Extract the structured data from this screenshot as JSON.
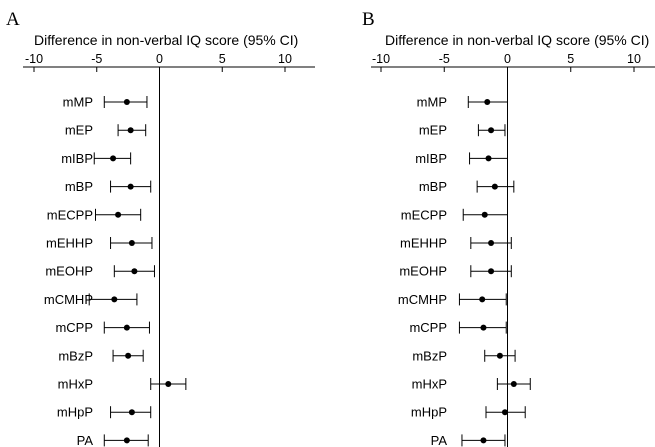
{
  "chart_data": [
    {
      "type": "scatter",
      "panel": "A",
      "title": "Difference in non-verbal IQ score (95% CI)",
      "xlim": [
        -10,
        10
      ],
      "xticks": [
        -10,
        -5,
        0,
        5,
        10
      ],
      "tick_labels": [
        "-10",
        "-5",
        "0",
        "5",
        "10"
      ],
      "categories": [
        "mMP",
        "mEP",
        "mIBP",
        "mBP",
        "mECPP",
        "mEHHP",
        "mEOHP",
        "mCMHP",
        "mCPP",
        "mBzP",
        "mHxP",
        "mHpP",
        "PA"
      ],
      "series": [
        {
          "values": [
            -2.6,
            -2.3,
            -3.7,
            -2.3,
            -3.3,
            -2.2,
            -2.0,
            -3.6,
            -2.6,
            -2.5,
            0.7,
            -2.2,
            -2.6
          ],
          "lower": [
            -4.4,
            -3.3,
            -5.2,
            -3.9,
            -5.1,
            -3.9,
            -3.6,
            -5.6,
            -4.4,
            -3.7,
            -0.7,
            -3.9,
            -4.4
          ],
          "upper": [
            -1.0,
            -1.1,
            -2.3,
            -0.7,
            -1.5,
            -0.6,
            -0.4,
            -1.8,
            -0.8,
            -1.3,
            2.1,
            -0.7,
            -0.9
          ]
        }
      ]
    },
    {
      "type": "scatter",
      "panel": "B",
      "title": "Difference in non-verbal IQ score (95% CI)",
      "xlim": [
        -10,
        10
      ],
      "xticks": [
        -10,
        -5,
        0,
        5,
        10
      ],
      "tick_labels": [
        "-10",
        "-5",
        "0",
        "5",
        "10"
      ],
      "categories": [
        "mMP",
        "mEP",
        "mIBP",
        "mBP",
        "mECPP",
        "mEHHP",
        "mEOHP",
        "mCMHP",
        "mCPP",
        "mBzP",
        "mHxP",
        "mHpP",
        "PA"
      ],
      "series": [
        {
          "values": [
            -1.6,
            -1.3,
            -1.5,
            -1.0,
            -1.8,
            -1.3,
            -1.3,
            -2.0,
            -1.9,
            -0.6,
            0.5,
            -0.2,
            -1.9
          ],
          "lower": [
            -3.1,
            -2.3,
            -3.0,
            -2.4,
            -3.5,
            -2.9,
            -2.9,
            -3.8,
            -3.8,
            -1.8,
            -0.8,
            -1.7,
            -3.6
          ],
          "upper": [
            0.0,
            -0.2,
            0.0,
            0.5,
            0.0,
            0.3,
            0.3,
            -0.1,
            -0.1,
            0.6,
            1.8,
            1.4,
            -0.2
          ]
        }
      ]
    }
  ]
}
